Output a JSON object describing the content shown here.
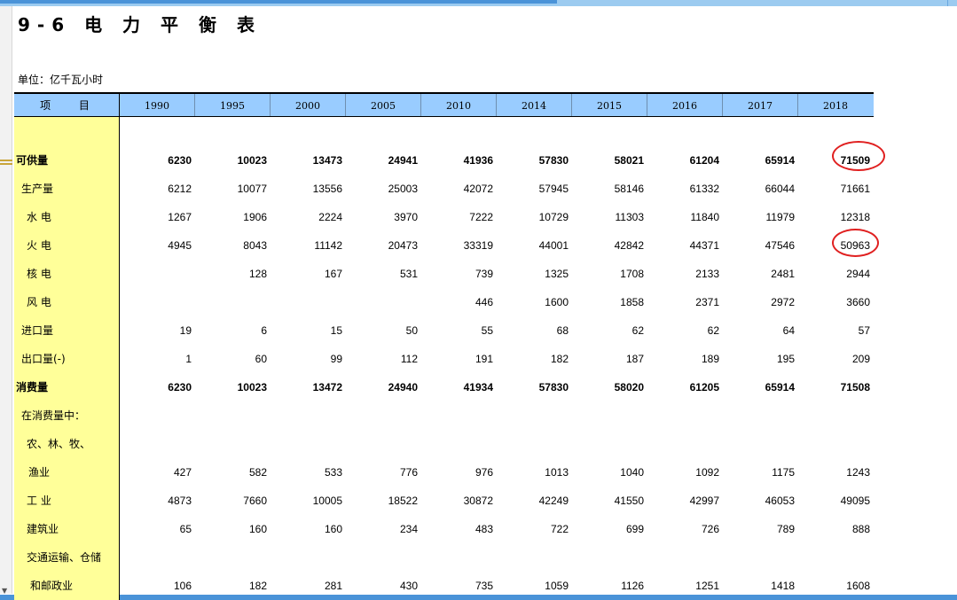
{
  "title": "9-6  电 力 平 衡 表",
  "unit_label": "单位：亿千瓦小时",
  "header": {
    "item_label": "项 目",
    "years": [
      "1990",
      "1995",
      "2000",
      "2005",
      "2010",
      "2014",
      "2015",
      "2016",
      "2017",
      "2018"
    ]
  },
  "rows": [
    {
      "label": "可供量",
      "bold": true,
      "values": [
        "6230",
        "10023",
        "13473",
        "24941",
        "41936",
        "57830",
        "58021",
        "61204",
        "65914",
        "71509"
      ]
    },
    {
      "label": "生产量",
      "values": [
        "6212",
        "10077",
        "13556",
        "25003",
        "42072",
        "57945",
        "58146",
        "61332",
        "66044",
        "71661"
      ]
    },
    {
      "label": "水 电",
      "values": [
        "1267",
        "1906",
        "2224",
        "3970",
        "7222",
        "10729",
        "11303",
        "11840",
        "11979",
        "12318"
      ]
    },
    {
      "label": "火 电",
      "values": [
        "4945",
        "8043",
        "11142",
        "20473",
        "33319",
        "44001",
        "42842",
        "44371",
        "47546",
        "50963"
      ]
    },
    {
      "label": "核 电",
      "values": [
        "",
        "128",
        "167",
        "531",
        "739",
        "1325",
        "1708",
        "2133",
        "2481",
        "2944"
      ]
    },
    {
      "label": "风 电",
      "values": [
        "",
        "",
        "",
        "",
        "446",
        "1600",
        "1858",
        "2371",
        "2972",
        "3660"
      ]
    },
    {
      "label": "进口量",
      "values": [
        "19",
        "6",
        "15",
        "50",
        "55",
        "68",
        "62",
        "62",
        "64",
        "57"
      ]
    },
    {
      "label": "出口量(-)",
      "values": [
        "1",
        "60",
        "99",
        "112",
        "191",
        "182",
        "187",
        "189",
        "195",
        "209"
      ]
    },
    {
      "label": "消费量",
      "bold": true,
      "values": [
        "6230",
        "10023",
        "13472",
        "24940",
        "41934",
        "57830",
        "58020",
        "61205",
        "65914",
        "71508"
      ]
    },
    {
      "label": "在消费量中：",
      "values": [
        "",
        "",
        "",
        "",
        "",
        "",
        "",
        "",
        "",
        ""
      ]
    },
    {
      "label": "农、林、牧、",
      "values": [
        "",
        "",
        "",
        "",
        "",
        "",
        "",
        "",
        "",
        ""
      ]
    },
    {
      "label": "渔业",
      "values": [
        "427",
        "582",
        "533",
        "776",
        "976",
        "1013",
        "1040",
        "1092",
        "1175",
        "1243"
      ]
    },
    {
      "label": "工 业",
      "values": [
        "4873",
        "7660",
        "10005",
        "18522",
        "30872",
        "42249",
        "41550",
        "42997",
        "46053",
        "49095"
      ]
    },
    {
      "label": "建筑业",
      "values": [
        "65",
        "160",
        "160",
        "234",
        "483",
        "722",
        "699",
        "726",
        "789",
        "888"
      ]
    },
    {
      "label": "交通运输、仓储",
      "values": [
        "",
        "",
        "",
        "",
        "",
        "",
        "",
        "",
        "",
        ""
      ]
    },
    {
      "label": "和邮政业",
      "values": [
        "106",
        "182",
        "281",
        "430",
        "735",
        "1059",
        "1126",
        "1251",
        "1418",
        "1608"
      ]
    }
  ],
  "colors": {
    "header_bg": "#99ccff",
    "label_column_bg": "#ffff99",
    "highlight_circle": "#e02020"
  }
}
